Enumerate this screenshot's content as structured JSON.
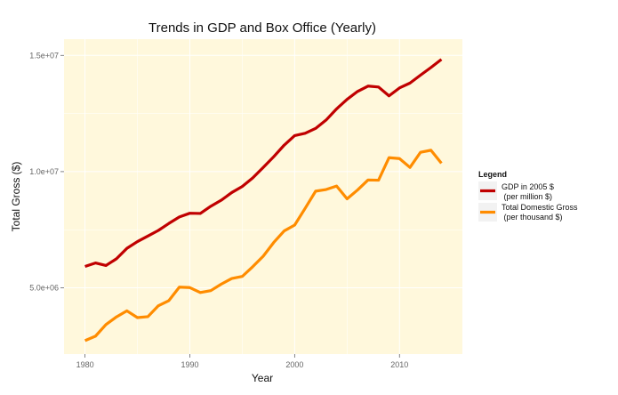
{
  "chart_data": {
    "type": "line",
    "title": "Trends in GDP and Box Office (Yearly)",
    "xlabel": "Year",
    "ylabel": "Total Gross ($)",
    "xlim": [
      1978,
      2016
    ],
    "ylim": [
      2150000,
      15700000
    ],
    "x_ticks": [
      1980,
      1990,
      2000,
      2010
    ],
    "y_ticks": [
      5000000,
      10000000,
      15000000
    ],
    "y_tick_labels": [
      "5.0e+06",
      "1.0e+07",
      "1.5e+07"
    ],
    "grid": true,
    "legend": {
      "title": "Legend",
      "position": "right",
      "entries": [
        {
          "line1": "GDP in 2005 $",
          "line2": " (per million $)",
          "color": "#c00000"
        },
        {
          "line1": "Total Domestic Gross",
          "line2": " (per thousand $)",
          "color": "#ff8c00"
        }
      ]
    },
    "x": [
      1980,
      1981,
      1982,
      1983,
      1984,
      1985,
      1986,
      1987,
      1988,
      1989,
      1990,
      1991,
      1992,
      1993,
      1994,
      1995,
      1996,
      1997,
      1998,
      1999,
      2000,
      2001,
      2002,
      2003,
      2004,
      2005,
      2006,
      2007,
      2008,
      2009,
      2010,
      2011,
      2012,
      2013,
      2014
    ],
    "series": [
      {
        "name": "GDP in 2005 $ (per million $)",
        "color": "#c00000",
        "values": [
          5920000,
          6070000,
          5960000,
          6250000,
          6700000,
          6990000,
          7230000,
          7470000,
          7770000,
          8050000,
          8210000,
          8200000,
          8510000,
          8770000,
          9100000,
          9360000,
          9730000,
          10180000,
          10640000,
          11140000,
          11550000,
          11650000,
          11860000,
          12220000,
          12700000,
          13110000,
          13450000,
          13680000,
          13640000,
          13260000,
          13600000,
          13810000,
          14150000,
          14480000,
          14830000
        ]
      },
      {
        "name": "Total Domestic Gross (per thousand $)",
        "color": "#ff8c00",
        "values": [
          2730000,
          2920000,
          3420000,
          3750000,
          4010000,
          3720000,
          3760000,
          4230000,
          4450000,
          5030000,
          5010000,
          4800000,
          4880000,
          5160000,
          5400000,
          5490000,
          5910000,
          6360000,
          6950000,
          7450000,
          7700000,
          8420000,
          9160000,
          9230000,
          9380000,
          8830000,
          9210000,
          9640000,
          9630000,
          10600000,
          10560000,
          10180000,
          10830000,
          10920000,
          10360000
        ]
      }
    ]
  }
}
